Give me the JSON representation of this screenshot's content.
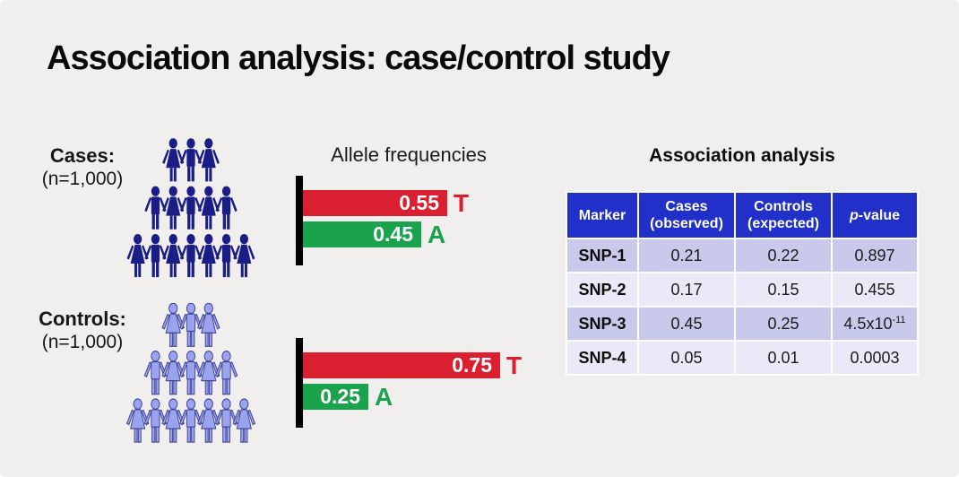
{
  "slide": {
    "title": "Association analysis: case/control study"
  },
  "groups": {
    "cases": {
      "label": "Cases:",
      "n_label": "(n=1,000)"
    },
    "controls": {
      "label": "Controls:",
      "n_label": "(n=1,000)"
    }
  },
  "allele_chart": {
    "title": "Allele frequencies",
    "colors": {
      "t_bar": "#da2030",
      "a_bar": "#1aa24d",
      "axis": "#000000"
    },
    "cases": [
      {
        "allele": "T",
        "value": 0.55,
        "display": "0.55"
      },
      {
        "allele": "A",
        "value": 0.45,
        "display": "0.45"
      }
    ],
    "controls": [
      {
        "allele": "T",
        "value": 0.75,
        "display": "0.75"
      },
      {
        "allele": "A",
        "value": 0.25,
        "display": "0.25"
      }
    ]
  },
  "table": {
    "title": "Association analysis",
    "colors": {
      "header_bg": "#2130c9",
      "row_odd": "#c9c9ec",
      "row_even": "#e9e9f8"
    },
    "header": {
      "marker": "Marker",
      "cases_line1": "Cases",
      "cases_line2": "(observed)",
      "controls_line1": "Controls",
      "controls_line2": "(expected)",
      "p_italic": "p",
      "p_rest": "-value"
    },
    "rows": [
      {
        "marker": "SNP-1",
        "cases": "0.21",
        "controls": "0.22",
        "p": "0.897",
        "p_sup": ""
      },
      {
        "marker": "SNP-2",
        "cases": "0.17",
        "controls": "0.15",
        "p": "0.455",
        "p_sup": ""
      },
      {
        "marker": "SNP-3",
        "cases": "0.45",
        "controls": "0.25",
        "p": "4.5x10",
        "p_sup": "-11"
      },
      {
        "marker": "SNP-4",
        "cases": "0.05",
        "controls": "0.01",
        "p": "0.0003",
        "p_sup": ""
      }
    ]
  },
  "chart_data": [
    {
      "type": "bar",
      "title": "Allele frequencies",
      "group": "Cases (n=1,000)",
      "orientation": "horizontal",
      "categories": [
        "T",
        "A"
      ],
      "values": [
        0.55,
        0.45
      ],
      "bar_colors": [
        "#da2030",
        "#1aa24d"
      ],
      "xlim": [
        0,
        1
      ],
      "grid": false,
      "data_labels": [
        "0.55",
        "0.45"
      ]
    },
    {
      "type": "bar",
      "title": "Allele frequencies",
      "group": "Controls (n=1,000)",
      "orientation": "horizontal",
      "categories": [
        "T",
        "A"
      ],
      "values": [
        0.75,
        0.25
      ],
      "bar_colors": [
        "#da2030",
        "#1aa24d"
      ],
      "xlim": [
        0,
        1
      ],
      "grid": false,
      "data_labels": [
        "0.75",
        "0.25"
      ]
    },
    {
      "type": "table",
      "title": "Association analysis",
      "columns": [
        "Marker",
        "Cases (observed)",
        "Controls (expected)",
        "p-value"
      ],
      "rows": [
        [
          "SNP-1",
          "0.21",
          "0.22",
          "0.897"
        ],
        [
          "SNP-2",
          "0.17",
          "0.15",
          "0.455"
        ],
        [
          "SNP-3",
          "0.45",
          "0.25",
          "4.5x10^-11"
        ],
        [
          "SNP-4",
          "0.05",
          "0.01",
          "0.0003"
        ]
      ]
    }
  ]
}
